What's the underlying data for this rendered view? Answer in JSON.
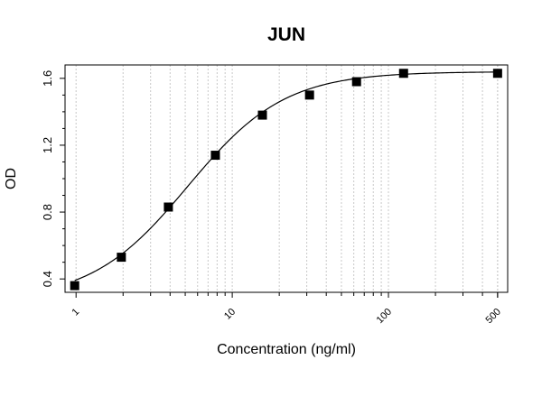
{
  "chart_data": {
    "type": "scatter",
    "title": "JUN",
    "xlabel": "Concentration (ng/ml)",
    "ylabel": "OD",
    "x_scale": "log",
    "xlim": [
      0.85,
      580
    ],
    "ylim": [
      0.32,
      1.68
    ],
    "x_ticks": [
      1,
      10,
      100,
      500
    ],
    "x_tick_labels": [
      "1",
      "10",
      "100",
      "500"
    ],
    "y_ticks": [
      0.4,
      0.8,
      1.2,
      1.6
    ],
    "y_tick_labels": [
      "0.4",
      "0.8",
      "1.2",
      "1.6"
    ],
    "grid": "vertical dotted at log minor ticks",
    "series": [
      {
        "x": [
          0.98,
          1.95,
          3.9,
          7.8,
          15.6,
          31.25,
          62.5,
          125,
          500
        ],
        "y": [
          0.36,
          0.53,
          0.83,
          1.14,
          1.38,
          1.5,
          1.58,
          1.63,
          1.63
        ],
        "marker": "square",
        "color": "#000000"
      }
    ],
    "fit_curve": {
      "model": "4PL",
      "bottom": 0.27,
      "top": 1.64,
      "ec50": 5.2,
      "hill": 1.4
    }
  }
}
